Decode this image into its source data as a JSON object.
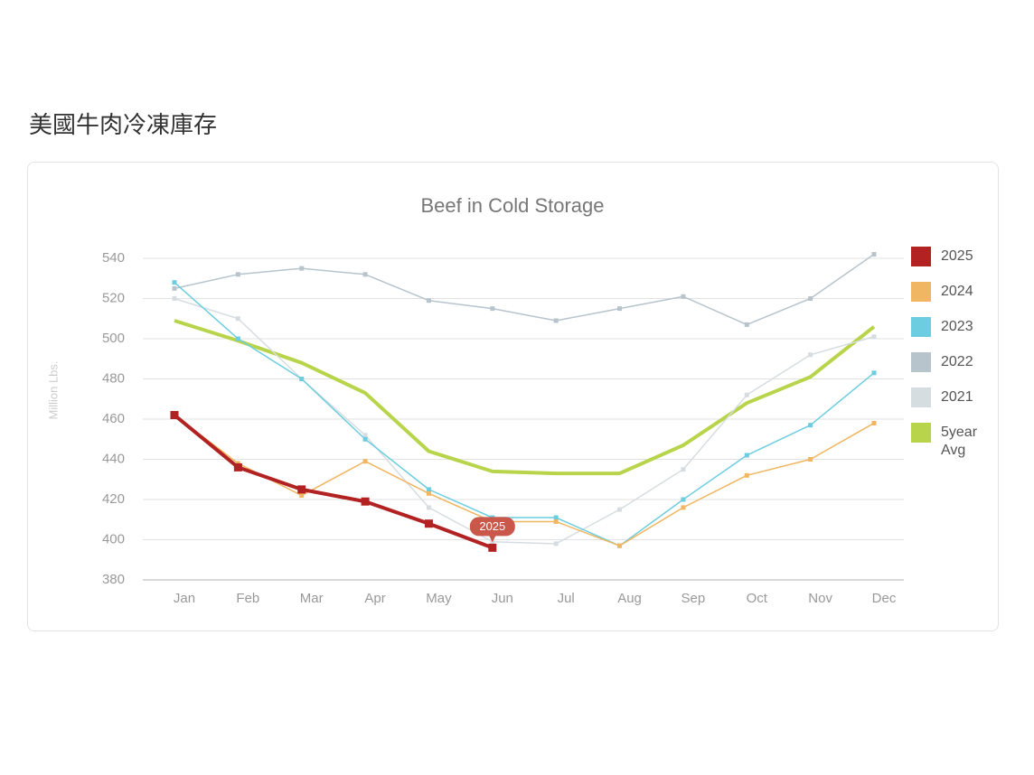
{
  "heading": "美國牛肉冷凍庫存",
  "chart_data": {
    "type": "line",
    "title": "Beef in Cold Storage",
    "y_label": "Million Lbs.",
    "categories": [
      "Jan",
      "Feb",
      "Mar",
      "Apr",
      "May",
      "Jun",
      "Jul",
      "Aug",
      "Sep",
      "Oct",
      "Nov",
      "Dec"
    ],
    "series": [
      {
        "name": "2025",
        "color": "#b22222",
        "values": [
          462,
          436,
          425,
          419,
          408,
          396,
          null,
          null,
          null,
          null,
          null,
          null
        ]
      },
      {
        "name": "2024",
        "color": "#f0b661",
        "values": [
          462,
          438,
          422,
          439,
          423,
          409,
          409,
          397,
          416,
          432,
          440,
          458
        ]
      },
      {
        "name": "2023",
        "color": "#6ccde0",
        "values": [
          528,
          500,
          480,
          450,
          425,
          411,
          411,
          397,
          420,
          442,
          457,
          483
        ]
      },
      {
        "name": "2022",
        "color": "#b8c4cc",
        "values": [
          525,
          532,
          535,
          532,
          519,
          515,
          509,
          515,
          521,
          507,
          520,
          542
        ]
      },
      {
        "name": "2021",
        "color": "#d6dde1",
        "values": [
          520,
          510,
          480,
          452,
          416,
          399,
          398,
          415,
          435,
          472,
          492,
          501
        ]
      },
      {
        "name": "5year Avg",
        "color": "#b8d44a",
        "values": [
          509,
          499,
          488,
          473,
          444,
          434,
          433,
          433,
          447,
          468,
          481,
          506
        ]
      }
    ],
    "ylim": [
      380,
      540
    ],
    "yticks": [
      380,
      400,
      420,
      440,
      460,
      480,
      500,
      520,
      540
    ],
    "grid": true,
    "legend": "right"
  }
}
